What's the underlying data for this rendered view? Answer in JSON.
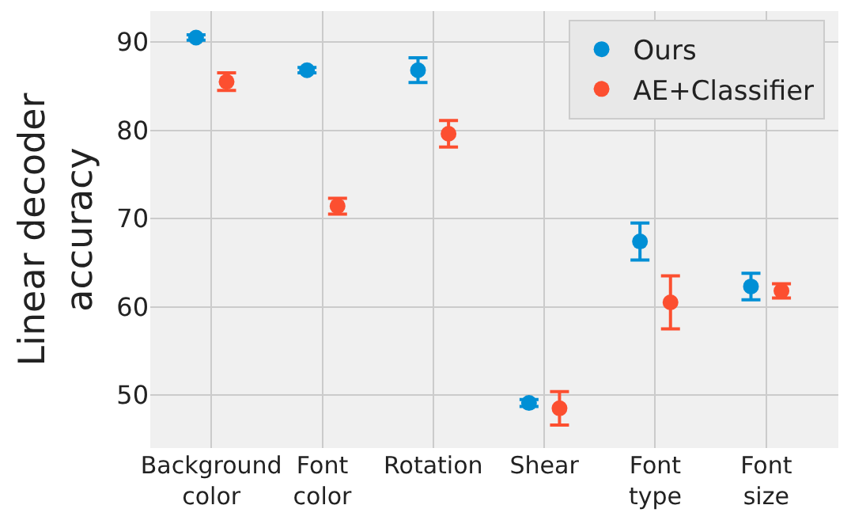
{
  "chart_data": {
    "type": "scatter",
    "ylabel": "Linear decoder\naccuracy",
    "categories": [
      "Background\ncolor",
      "Font\ncolor",
      "Rotation",
      "Shear",
      "Font\ntype",
      "Font\nsize"
    ],
    "series": [
      {
        "name": "Ours",
        "color": "#008fd5",
        "values": [
          90.5,
          86.8,
          86.8,
          49.1,
          67.4,
          62.3
        ],
        "errors": [
          0.3,
          0.3,
          1.4,
          0.4,
          2.1,
          1.5
        ]
      },
      {
        "name": "AE+Classifier",
        "color": "#fc4f30",
        "values": [
          85.5,
          71.4,
          79.6,
          48.5,
          60.5,
          61.8
        ],
        "errors": [
          1.0,
          0.9,
          1.5,
          1.9,
          3.0,
          0.8
        ]
      }
    ],
    "ylim": [
      44,
      93.5
    ],
    "yticks": [
      50,
      60,
      70,
      80,
      90
    ],
    "grid": true,
    "legend": "top right",
    "marker": "circle"
  }
}
